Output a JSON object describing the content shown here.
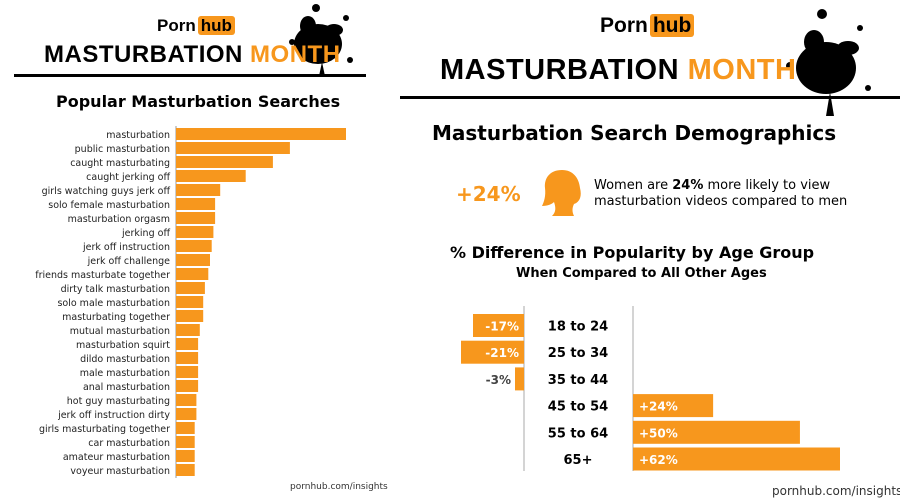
{
  "left": {
    "logo": {
      "porn": "Porn",
      "hub": "hub"
    },
    "banner": {
      "text1": "MASTURBATION ",
      "text2": "MONTH"
    },
    "title": "Popular Masturbation Searches",
    "footer": "pornhub.com/insights"
  },
  "right": {
    "logo": {
      "porn": "Porn",
      "hub": "hub"
    },
    "banner": {
      "text1": "MASTURBATION ",
      "text2": "MONTH"
    },
    "title": "Masturbation Search Demographics",
    "stat": {
      "value": "+24%",
      "line1_a": "Women are ",
      "line1_b": "24%",
      "line1_c": " more likely to view",
      "line2": "masturbation videos compared to men"
    },
    "age_title": "% Difference in Popularity by Age Group",
    "age_subtitle": "When Compared to All Other Ages",
    "footer": "pornhub.com/insights"
  },
  "colors": {
    "accent": "#f7971d",
    "text": "#000000"
  },
  "chart_data": [
    {
      "type": "bar",
      "orientation": "horizontal",
      "title": "Popular Masturbation Searches",
      "categories": [
        "masturbation",
        "public masturbation",
        "caught masturbating",
        "caught jerking off",
        "girls watching guys jerk off",
        "solo female masturbation",
        "masturbation orgasm",
        "jerking off",
        "jerk off instruction",
        "jerk off challenge",
        "friends masturbate together",
        "dirty talk masturbation",
        "solo male masturbation",
        "masturbating together",
        "mutual masturbation",
        "masturbation squirt",
        "dildo masturbation",
        "male masturbation",
        "anal masturbation",
        "hot guy masturbating",
        "jerk off instruction dirty",
        "girls masturbating together",
        "car masturbation",
        "amateur masturbation",
        "voyeur masturbation"
      ],
      "values": [
        100,
        67,
        57,
        41,
        26,
        23,
        23,
        22,
        21,
        20,
        19,
        17,
        16,
        16,
        14,
        13,
        13,
        13,
        13,
        12,
        12,
        11,
        11,
        11,
        11
      ]
    },
    {
      "type": "bar",
      "orientation": "horizontal-diverging",
      "title": "% Difference in Popularity by Age Group",
      "categories": [
        "18 to 24",
        "25 to 34",
        "35 to 44",
        "45 to 54",
        "55 to 64",
        "65+"
      ],
      "values": [
        -17,
        -21,
        -3,
        24,
        50,
        62
      ],
      "labels": [
        "-17%",
        "-21%",
        "-3%",
        "+24%",
        "+50%",
        "+62%"
      ]
    }
  ]
}
